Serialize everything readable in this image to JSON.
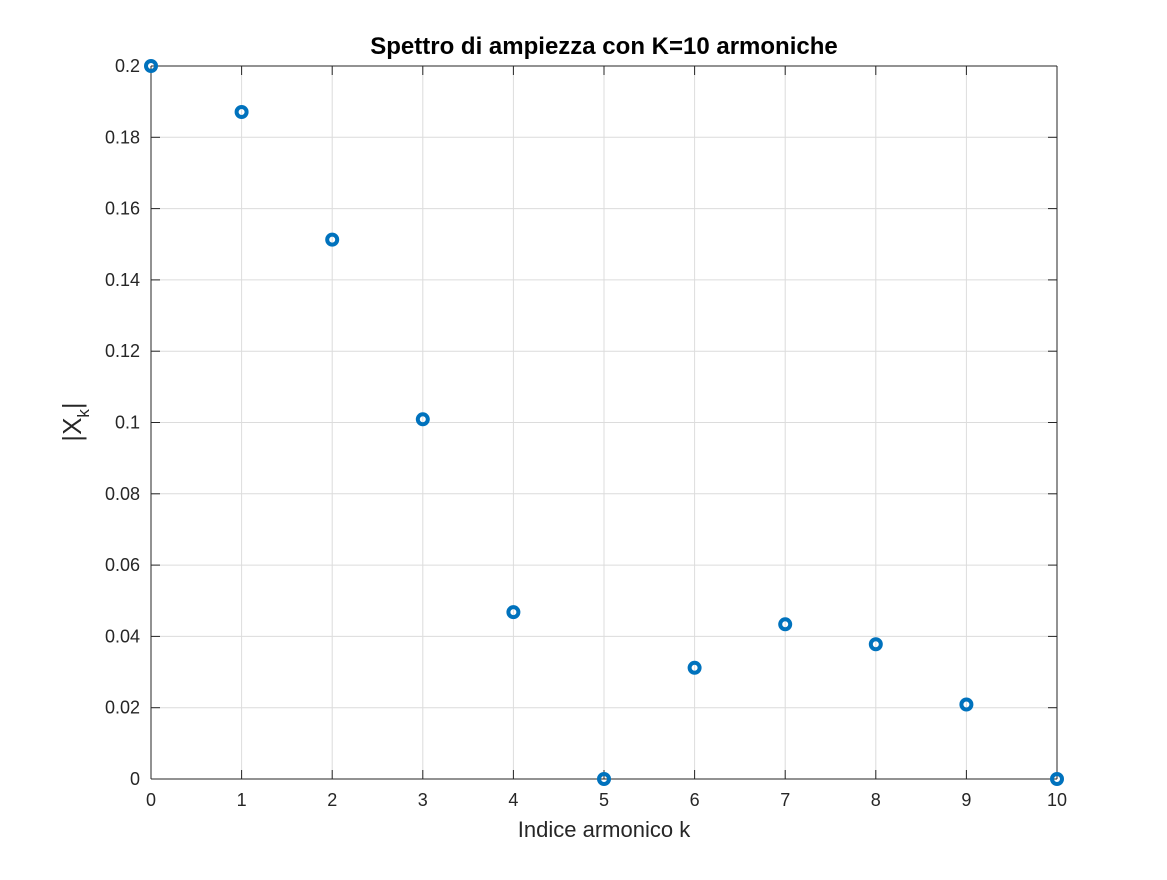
{
  "chart_data": {
    "type": "scatter",
    "title": "Spettro di ampiezza con K=10 armoniche",
    "xlabel": "Indice armonico k",
    "ylabel": {
      "main": "|X",
      "sub": "k",
      "suffix": "|"
    },
    "x": [
      0,
      1,
      2,
      3,
      4,
      5,
      6,
      7,
      8,
      9,
      10
    ],
    "series": [
      {
        "values": [
          0.2,
          0.1871,
          0.1513,
          0.1009,
          0.0468,
          0.0,
          0.0312,
          0.0434,
          0.0378,
          0.0209,
          0.0
        ]
      }
    ],
    "xlim": [
      0,
      10
    ],
    "ylim": [
      0,
      0.2
    ],
    "x_ticks": [
      0,
      1,
      2,
      3,
      4,
      5,
      6,
      7,
      8,
      9,
      10
    ],
    "y_ticks": [
      0,
      0.02,
      0.04,
      0.06,
      0.08,
      0.1,
      0.12,
      0.14,
      0.16,
      0.18,
      0.2
    ],
    "x_tick_labels": [
      "0",
      "1",
      "2",
      "3",
      "4",
      "5",
      "6",
      "7",
      "8",
      "9",
      "10"
    ],
    "y_tick_labels": [
      "0",
      "0.02",
      "0.04",
      "0.06",
      "0.08",
      "0.1",
      "0.12",
      "0.14",
      "0.16",
      "0.18",
      "0.2"
    ],
    "grid": true,
    "marker": "circle",
    "marker_color": "#0072bd"
  }
}
